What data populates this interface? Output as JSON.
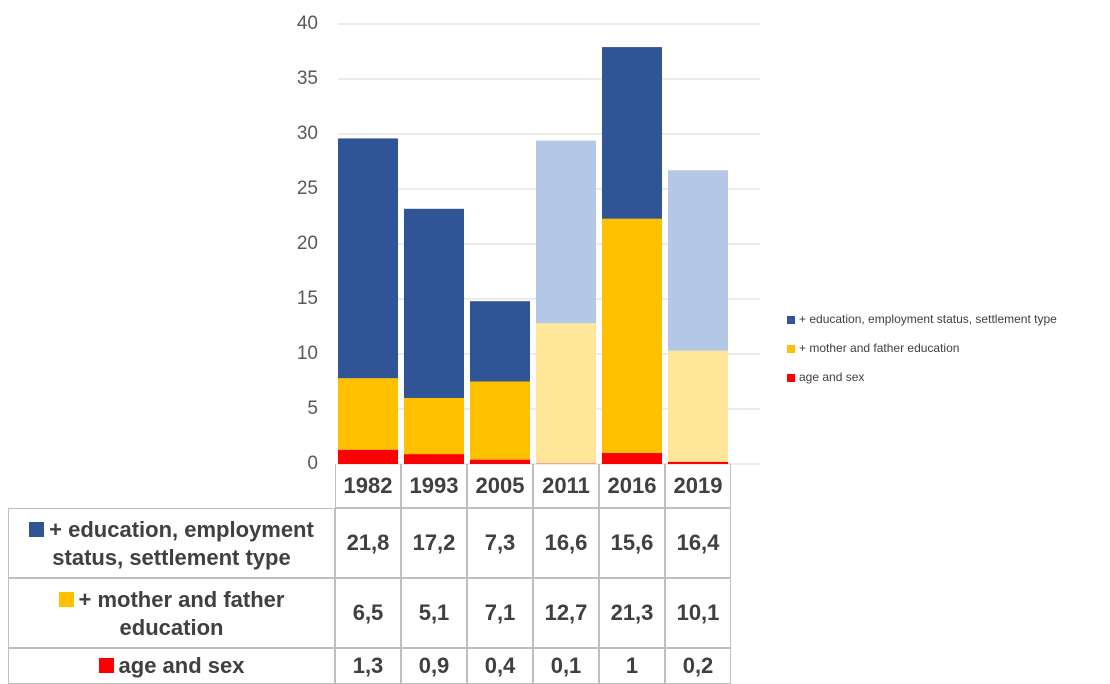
{
  "chart_data": {
    "type": "bar",
    "stacked": true,
    "categories": [
      "1982",
      "1993",
      "2005",
      "2011",
      "2016",
      "2019"
    ],
    "series": [
      {
        "name": "age and sex",
        "color": "#ff0000",
        "colors": [
          "#ff0000",
          "#ff0000",
          "#ff0000",
          "#ff9999",
          "#ff0000",
          "#ff0000"
        ],
        "values": [
          1.3,
          0.9,
          0.4,
          0.1,
          1,
          0.2
        ],
        "value_labels": [
          "1,3",
          "0,9",
          "0,4",
          "0,1",
          "1",
          "0,2"
        ]
      },
      {
        "name": "+ mother and father education",
        "color": "#ffc000",
        "colors": [
          "#ffc000",
          "#ffc000",
          "#ffc000",
          "#ffe699",
          "#ffc000",
          "#ffe699"
        ],
        "values": [
          6.5,
          5.1,
          7.1,
          12.7,
          21.3,
          10.1
        ],
        "value_labels": [
          "6,5",
          "5,1",
          "7,1",
          "12,7",
          "21,3",
          "10,1"
        ]
      },
      {
        "name": "+ education, employment status, settlement type",
        "color": "#2f5597",
        "colors": [
          "#2f5597",
          "#2f5597",
          "#2f5597",
          "#b4c7e7",
          "#2f5597",
          "#b4c7e7"
        ],
        "values": [
          21.8,
          17.2,
          7.3,
          16.6,
          15.6,
          16.4
        ],
        "value_labels": [
          "21,8",
          "17,2",
          "7,3",
          "16,6",
          "15,6",
          "16,4"
        ]
      }
    ],
    "ylim": [
      0,
      40
    ],
    "yticks": [
      0,
      5,
      10,
      15,
      20,
      25,
      30,
      35,
      40
    ],
    "grid": true,
    "legend": "right",
    "data_table": true
  }
}
